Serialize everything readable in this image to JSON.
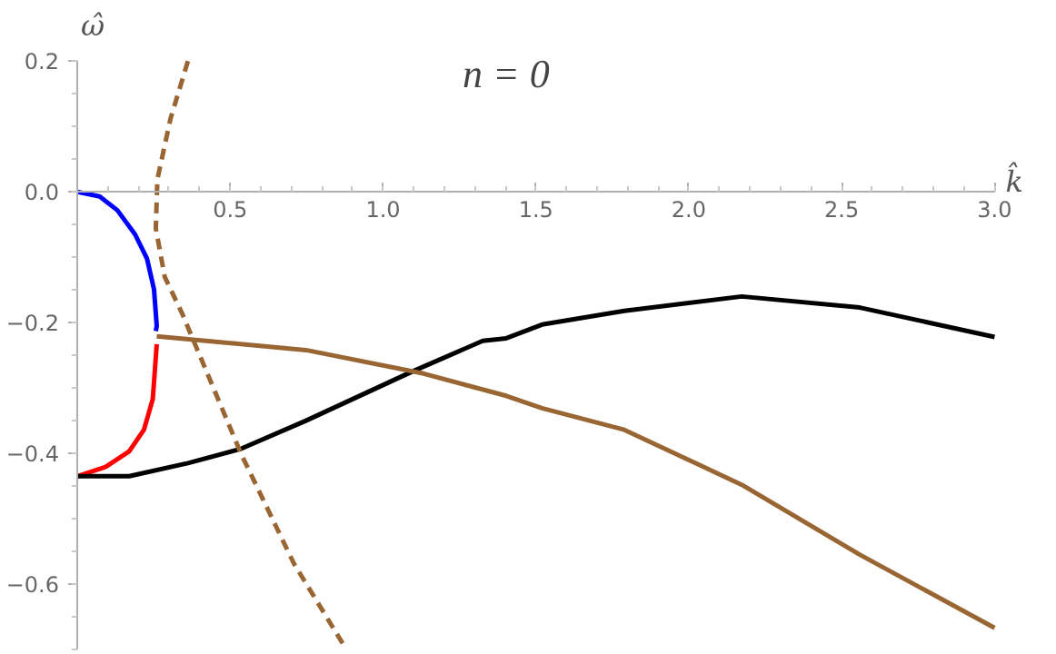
{
  "chart_data": {
    "type": "line",
    "xlabel": "k̂",
    "ylabel": "ω̂",
    "annotations": [
      "n = 0"
    ],
    "xlim": [
      0,
      3.0
    ],
    "ylim": [
      -0.7,
      0.2
    ],
    "xticks": [
      0.5,
      {
        "value": 1.0,
        "label": "1.0"
      },
      1.5,
      {
        "value": 2.0,
        "label": "2.0"
      },
      2.5,
      {
        "value": 3.0,
        "label": "3.0"
      }
    ],
    "yticks": [
      0.2,
      {
        "value": 0.0,
        "label": "0.0"
      },
      -0.2,
      -0.4,
      -0.6
    ],
    "grid": false,
    "series": [
      {
        "color": "#0000ff",
        "x": [
          0,
          0.073,
          0.131,
          0.189,
          0.228,
          0.251,
          0.26,
          0.257
        ],
        "values": [
          0,
          -0.007,
          -0.028,
          -0.065,
          -0.102,
          -0.149,
          -0.205,
          -0.213
        ]
      },
      {
        "color": "#ff0000",
        "x": [
          0.26,
          0.247,
          0.218,
          0.17,
          0.092,
          0
        ],
        "values": [
          -0.233,
          -0.317,
          -0.364,
          -0.397,
          -0.421,
          -0.435
        ]
      },
      {
        "color": "#000000",
        "x": [
          0,
          0.17,
          0.362,
          0.536,
          0.748,
          1.095,
          1.326,
          1.403,
          1.52,
          1.789,
          2.173,
          2.559,
          3.0
        ],
        "values": [
          -0.435,
          -0.435,
          -0.415,
          -0.393,
          -0.35,
          -0.275,
          -0.228,
          -0.224,
          -0.203,
          -0.182,
          -0.16,
          -0.177,
          -0.222
        ]
      },
      {
        "color": "#996633",
        "x": [
          0.26,
          0.748,
          1.133,
          1.403,
          1.52,
          1.789,
          2.173,
          2.559,
          3.0
        ],
        "values": [
          -0.221,
          -0.242,
          -0.278,
          -0.312,
          -0.331,
          -0.364,
          -0.448,
          -0.555,
          -0.667
        ]
      },
      {
        "color": "#996633",
        "line_style": "dashed",
        "x": [
          0.362,
          0.305,
          0.262,
          0.257,
          0.286,
          0.343,
          0.536,
          0.709,
          0.88
        ],
        "values": [
          0.2,
          0.112,
          0.019,
          -0.056,
          -0.13,
          -0.186,
          -0.401,
          -0.569,
          -0.7
        ]
      }
    ]
  }
}
